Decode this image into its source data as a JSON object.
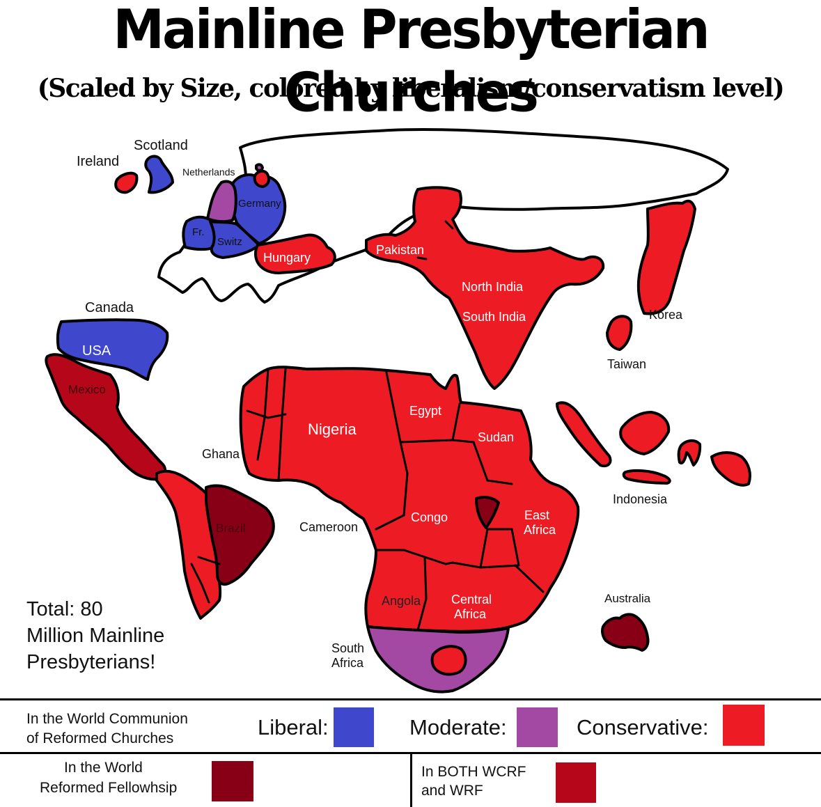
{
  "title": "Mainline Presbyterian Churches",
  "subtitle": "(Scaled by Size, colored by liberalism/conservatism level)",
  "colors": {
    "liberal": "#3f48cc",
    "moderate": "#a349a4",
    "conservative": "#ed1c24",
    "wrf": "#880015",
    "both": "#b5061a",
    "unaffiliated": "#ffffff"
  },
  "labels": {
    "ireland": "Ireland",
    "scotland": "Scotland",
    "netherlands": "Netherlands",
    "germany": "Germany",
    "france": "Fr.",
    "switzerland": "Switz",
    "hungary": "Hungary",
    "pakistan": "Pakistan",
    "north_india": "North India",
    "south_india": "South India",
    "korea": "Korea",
    "taiwan": "Taiwan",
    "canada": "Canada",
    "usa": "USA",
    "mexico": "Mexico",
    "ghana": "Ghana",
    "nigeria": "Nigeria",
    "egypt": "Egypt",
    "sudan": "Sudan",
    "indonesia": "Indonesia",
    "cameroon": "Cameroon",
    "congo": "Congo",
    "brazil": "Brazil",
    "east_africa_1": "East",
    "east_africa_2": "Africa",
    "angola": "Angola",
    "central_africa_1": "Central",
    "central_africa_2": "Africa",
    "australia": "Australia",
    "south_africa_1": "South",
    "south_africa_2": "Africa"
  },
  "total": {
    "line1": "Total: 80",
    "line2": "Million Mainline",
    "line3": "Presbyterians!"
  },
  "legend": {
    "wcrc_1": "In the World Communion",
    "wcrc_2": "of Reformed Churches",
    "liberal": "Liberal:",
    "moderate": "Moderate:",
    "conservative": "Conservative:",
    "wrf_1": "In the World",
    "wrf_2": "Reformed Fellowhsip",
    "both_1": "In BOTH WCRF",
    "both_2": "and WRF"
  }
}
